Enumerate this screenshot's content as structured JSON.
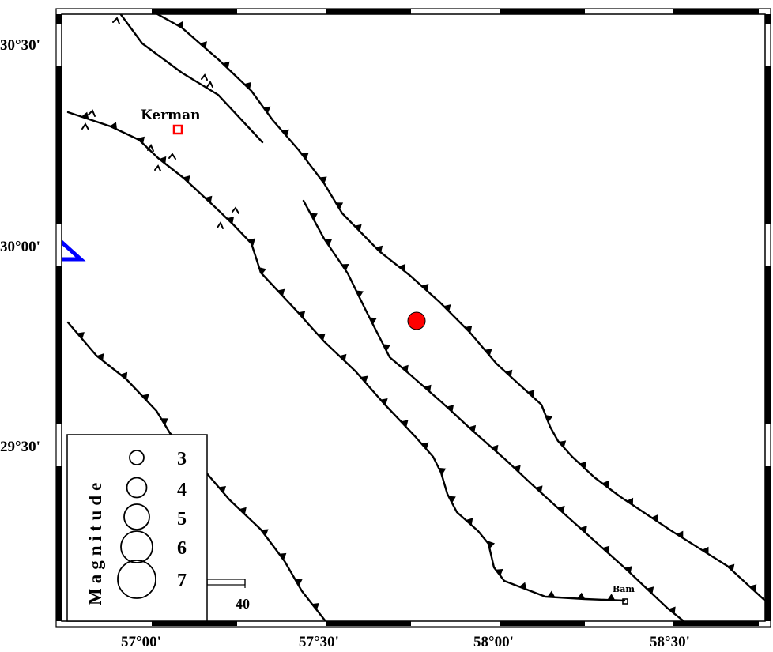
{
  "map": {
    "lon_ticks": [
      "57°00'",
      "57°30'",
      "58°00'",
      "58°30'"
    ],
    "lat_ticks": [
      "30°30'",
      "30°00'",
      "29°30'"
    ],
    "cities": [
      {
        "name": "Kerman"
      },
      {
        "name": "Bam"
      }
    ],
    "epicenter_color": "#ff0000",
    "station_color": "#0000ff",
    "city_marker_colors": {
      "Kerman": "#ff0000",
      "Bam": "#000000"
    }
  },
  "legend": {
    "title": "Magnitude",
    "magnitudes": [
      "3",
      "4",
      "5",
      "6",
      "7"
    ]
  },
  "scale_bar": {
    "label": "40"
  },
  "icons": {
    "fault": "thrust-fault-with-triangle-teeth",
    "strike_slip": "strike-slip-tick-marks",
    "epicenter": "filled-circle",
    "station": "triangle",
    "city": "hollow-square"
  }
}
